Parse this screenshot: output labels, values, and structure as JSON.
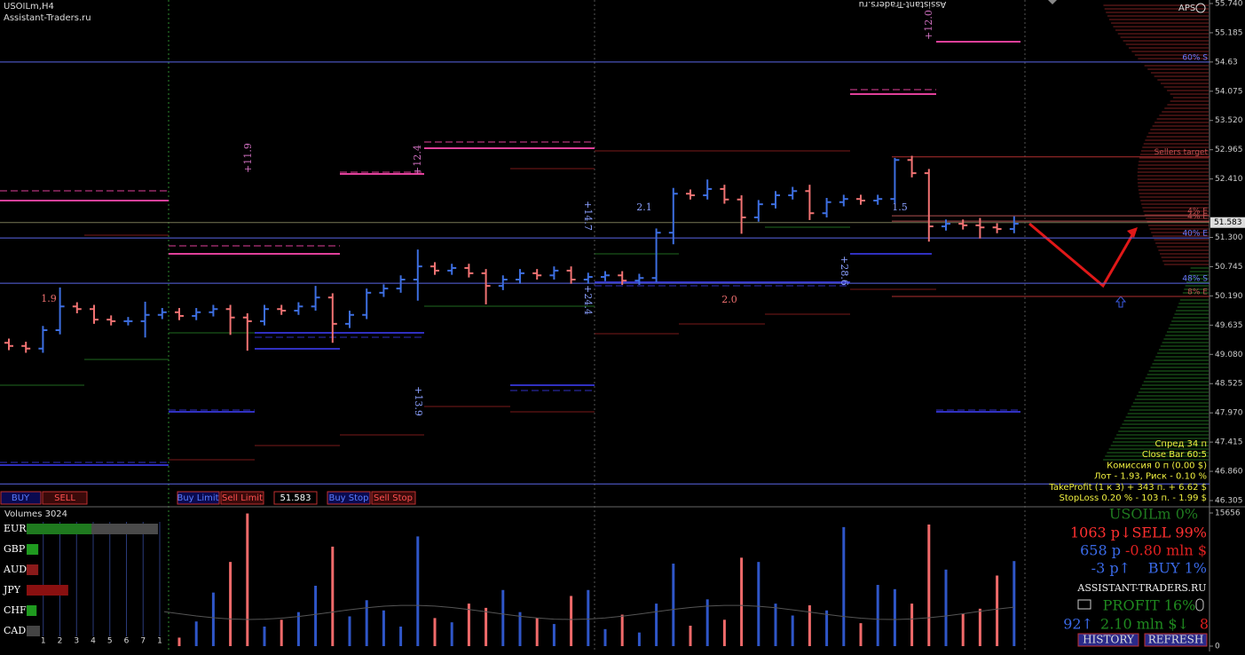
{
  "chart_data": [
    {
      "type": "ohlc",
      "title": "USOILm,H4",
      "subtitle": "Assistant-Traders.ru",
      "up_color": "#3d6ee0",
      "down_color": "#f07272",
      "open": [
        49.3,
        49.24,
        49.19,
        49.54,
        49.99,
        49.94,
        49.74,
        49.71,
        49.71,
        49.83,
        49.88,
        49.81,
        49.88,
        49.94,
        49.78,
        49.71,
        49.94,
        49.91,
        49.99,
        50.16,
        49.66,
        49.83,
        50.25,
        50.33,
        50.5,
        50.75,
        50.67,
        50.72,
        50.62,
        50.38,
        50.5,
        50.62,
        50.58,
        50.67,
        50.5,
        50.55,
        50.58,
        50.48,
        50.53,
        51.39,
        52.13,
        52.1,
        52.22,
        52.02,
        51.68,
        51.93,
        52.1,
        52.18,
        51.76,
        51.97,
        52.03,
        52.0,
        52.03,
        52.77,
        52.52,
        51.51,
        51.56,
        51.53,
        51.49,
        51.46
      ],
      "high": [
        49.38,
        49.32,
        49.62,
        50.35,
        50.07,
        50.02,
        49.82,
        49.79,
        50.08,
        49.96,
        49.96,
        49.96,
        50.02,
        50.02,
        49.86,
        50.02,
        50.02,
        50.07,
        50.38,
        50.24,
        49.91,
        50.33,
        50.41,
        50.58,
        51.07,
        50.83,
        50.8,
        50.8,
        50.7,
        50.58,
        50.7,
        50.7,
        50.75,
        50.75,
        50.63,
        50.66,
        50.66,
        50.61,
        51.47,
        52.24,
        52.21,
        52.4,
        52.3,
        52.1,
        52.01,
        52.18,
        52.26,
        52.3,
        52.05,
        52.11,
        52.11,
        52.11,
        52.81,
        52.85,
        52.6,
        51.64,
        51.64,
        51.67,
        51.57,
        51.7
      ],
      "low": [
        49.16,
        49.11,
        49.11,
        49.46,
        49.86,
        49.66,
        49.63,
        49.63,
        49.4,
        49.75,
        49.73,
        49.73,
        49.8,
        49.45,
        49.15,
        49.63,
        49.83,
        49.83,
        49.91,
        49.3,
        49.58,
        49.75,
        50.17,
        50.25,
        50.1,
        50.59,
        50.59,
        50.54,
        50.03,
        50.3,
        50.42,
        50.5,
        50.5,
        50.42,
        50.42,
        50.47,
        50.4,
        50.4,
        50.45,
        51.17,
        52.02,
        52.02,
        51.94,
        51.37,
        51.6,
        51.85,
        52.02,
        51.63,
        51.68,
        51.89,
        51.92,
        51.92,
        51.95,
        52.44,
        51.22,
        51.43,
        51.45,
        51.28,
        51.38,
        51.38
      ],
      "close": [
        49.24,
        49.19,
        49.54,
        49.99,
        49.94,
        49.74,
        49.71,
        49.71,
        49.83,
        49.88,
        49.81,
        49.88,
        49.94,
        49.78,
        49.71,
        49.94,
        49.91,
        49.99,
        50.16,
        49.66,
        49.83,
        50.25,
        50.33,
        50.5,
        50.75,
        50.67,
        50.72,
        50.62,
        50.38,
        50.5,
        50.62,
        50.58,
        50.67,
        50.5,
        50.55,
        50.58,
        50.48,
        50.53,
        51.39,
        52.13,
        52.1,
        52.22,
        52.02,
        51.68,
        51.93,
        52.1,
        52.18,
        51.76,
        51.97,
        52.03,
        52.0,
        52.03,
        52.77,
        52.52,
        51.51,
        51.56,
        51.53,
        51.49,
        51.46,
        51.56
      ],
      "ylim": [
        46.204,
        55.807
      ],
      "yticks": [
        {
          "value": 55.74,
          "label": "55.740"
        },
        55.185,
        54.63,
        54.075,
        {
          "value": 53.52,
          "label": "53.520"
        },
        52.965,
        {
          "value": 52.41,
          "label": "52.410"
        },
        {
          "value": 51.3,
          "label": "51.300"
        },
        50.745,
        {
          "value": 50.19,
          "label": "50.190"
        },
        49.635,
        {
          "value": 49.08,
          "label": "49.080"
        },
        48.525,
        {
          "value": 47.97,
          "label": "47.970"
        },
        47.415,
        {
          "value": 46.86,
          "label": "46.860"
        },
        46.305
      ],
      "current_price": 51.583,
      "levels": [
        {
          "value": 54.63,
          "label": "60% S",
          "color": "#5a66e6"
        },
        {
          "value": 52.83,
          "label": "Sellers target",
          "color": "#b03030"
        },
        {
          "value": 51.71,
          "label": "4% E",
          "color": "#b05050"
        },
        {
          "value": 51.61,
          "label": "4% E",
          "color": "#b05050"
        },
        {
          "value": 51.29,
          "label": "40% E",
          "color": "#5a66e6"
        },
        {
          "value": 50.43,
          "label": "48% S",
          "color": "#5a66e6"
        },
        {
          "value": 50.18,
          "label": "8% E",
          "color": "#b03030"
        },
        {
          "value": 46.62,
          "color": "#5a66e6"
        }
      ],
      "annotations": [
        "+11.9",
        "+12.4",
        "+14.7",
        "+13.9",
        "+24.4",
        "+28.6",
        "+12.0",
        "1.9",
        "2.1",
        "1.5",
        "2.0"
      ]
    },
    {
      "type": "bar",
      "title": "Volumes 3024",
      "values": [
        2100,
        1800,
        3500,
        5200,
        2600,
        2000,
        1700,
        2400,
        3100,
        1500,
        1000,
        2900,
        6300,
        9900,
        15600,
        2300,
        3100,
        4000,
        7100,
        11700,
        3500,
        5400,
        4200,
        2300,
        12900,
        3300,
        2800,
        5000,
        4500,
        6600,
        4000,
        3300,
        2600,
        5900,
        6600,
        2000,
        3700,
        1600,
        5000,
        9700,
        2400,
        5500,
        3100,
        10400,
        9900,
        5000,
        3600,
        4800,
        4200,
        14000,
        2700,
        7200,
        6700,
        5000,
        14300,
        9000,
        3800,
        4400,
        8300,
        10000
      ],
      "ylim": [
        0,
        15656
      ],
      "yticks": [
        0,
        15656
      ]
    },
    {
      "type": "barh",
      "categories": [
        "EUR",
        "GBP",
        "AUD",
        "JPY",
        "CHF",
        "CAD"
      ],
      "values": [
        3.9,
        0.7,
        0.7,
        2.5,
        0.6,
        0.8
      ],
      "colors": [
        "#1f7a1f",
        "#1f9a1f",
        "#8a1a1a",
        "#8a1010",
        "#1f9a1f",
        "#444444"
      ],
      "xlim": [
        0,
        8
      ],
      "xticks": [
        1,
        2,
        3,
        4,
        5,
        6,
        7,
        {
          "value": 8,
          "label": "1"
        }
      ]
    }
  ],
  "header": {
    "mirrored_text": "Assistant-Traders.ru",
    "aps": "APS"
  },
  "toolbar": {
    "buy": "BUY",
    "sell": "SELL",
    "buy_limit": "Buy Limit",
    "sell_limit": "Sell Limit",
    "buy_stop": "Buy Stop",
    "sell_stop": "Sell Stop"
  },
  "info_panel": [
    "Спред 34 п",
    "Close Bar   60:5",
    "Комиссия 0 п (0.00 $)",
    "Лот - 1.93, Риск - 0.10 %",
    "TakeProfit (1 к 3) + 343 п. + 6.62 $",
    "StopLoss 0.20 % - 103 п. - 1.99 $"
  ],
  "stats_panel": {
    "symbol": "USOILm 0%",
    "sell": "1063 p↓SELL 99%",
    "sell_points": "658 p",
    "sell_money": "-0.80 mln $",
    "buy_points": "-3 p↑",
    "buy": "BUY 1%",
    "site": "ASSISTANT-TRADERS.RU",
    "profit": "PROFIT 16%",
    "up_count": "92↑",
    "money": "2.10 mln $↓",
    "down_count": "8",
    "history": "HISTORY",
    "refresh": "REFRESH"
  }
}
